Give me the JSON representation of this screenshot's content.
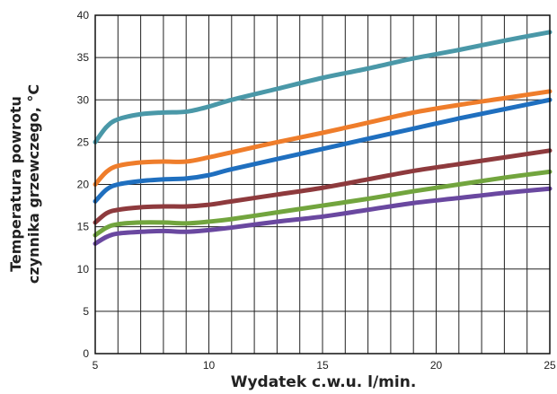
{
  "chart_data": {
    "type": "line",
    "title": "",
    "xlabel": "Wydatek c.w.u. l/min.",
    "ylabel_line1": "Temperatura powrotu",
    "ylabel_line2": "czynnika grzewczego, °C",
    "xlim": [
      5,
      25
    ],
    "ylim": [
      0,
      40
    ],
    "x_ticks": [
      5,
      10,
      15,
      20,
      25
    ],
    "y_ticks": [
      0,
      5,
      10,
      15,
      20,
      25,
      30,
      35,
      40
    ],
    "x_grid_step": 1,
    "y_grid_step": 5,
    "grid": true,
    "legend": "none",
    "series": [
      {
        "color": "#4a98a8",
        "points": [
          [
            5,
            25
          ],
          [
            5.5,
            26.8
          ],
          [
            6,
            27.7
          ],
          [
            7,
            28.3
          ],
          [
            8,
            28.5
          ],
          [
            9,
            28.6
          ],
          [
            10,
            29.2
          ],
          [
            11,
            30
          ],
          [
            13,
            31.3
          ],
          [
            15,
            32.6
          ],
          [
            17,
            33.7
          ],
          [
            19,
            34.9
          ],
          [
            21,
            35.9
          ],
          [
            23,
            37
          ],
          [
            25,
            38
          ]
        ]
      },
      {
        "color": "#ef7d2b",
        "points": [
          [
            5,
            20
          ],
          [
            5.5,
            21.5
          ],
          [
            6,
            22.2
          ],
          [
            7,
            22.6
          ],
          [
            8,
            22.7
          ],
          [
            9,
            22.7
          ],
          [
            10,
            23.2
          ],
          [
            11,
            23.8
          ],
          [
            13,
            25
          ],
          [
            15,
            26.1
          ],
          [
            17,
            27.3
          ],
          [
            19,
            28.5
          ],
          [
            21,
            29.4
          ],
          [
            23,
            30.2
          ],
          [
            25,
            31
          ]
        ]
      },
      {
        "color": "#1f6fbf",
        "points": [
          [
            5,
            18
          ],
          [
            5.5,
            19.4
          ],
          [
            6,
            20
          ],
          [
            7,
            20.4
          ],
          [
            8,
            20.6
          ],
          [
            9,
            20.7
          ],
          [
            10,
            21.1
          ],
          [
            11,
            21.8
          ],
          [
            13,
            23
          ],
          [
            15,
            24.2
          ],
          [
            17,
            25.4
          ],
          [
            19,
            26.6
          ],
          [
            21,
            27.8
          ],
          [
            23,
            28.9
          ],
          [
            25,
            30
          ]
        ]
      },
      {
        "color": "#8e3a3d",
        "points": [
          [
            5,
            15.5
          ],
          [
            5.5,
            16.6
          ],
          [
            6,
            17
          ],
          [
            7,
            17.3
          ],
          [
            8,
            17.4
          ],
          [
            9,
            17.4
          ],
          [
            10,
            17.6
          ],
          [
            11,
            18
          ],
          [
            13,
            18.8
          ],
          [
            15,
            19.6
          ],
          [
            17,
            20.6
          ],
          [
            19,
            21.6
          ],
          [
            21,
            22.4
          ],
          [
            23,
            23.2
          ],
          [
            25,
            24
          ]
        ]
      },
      {
        "color": "#72a53e",
        "points": [
          [
            5,
            14
          ],
          [
            5.5,
            14.9
          ],
          [
            6,
            15.3
          ],
          [
            7,
            15.5
          ],
          [
            8,
            15.5
          ],
          [
            9,
            15.4
          ],
          [
            10,
            15.6
          ],
          [
            11,
            15.9
          ],
          [
            13,
            16.7
          ],
          [
            15,
            17.5
          ],
          [
            17,
            18.3
          ],
          [
            19,
            19.2
          ],
          [
            21,
            20
          ],
          [
            23,
            20.8
          ],
          [
            25,
            21.5
          ]
        ]
      },
      {
        "color": "#6a48a0",
        "points": [
          [
            5,
            13
          ],
          [
            5.5,
            13.8
          ],
          [
            6,
            14.2
          ],
          [
            7,
            14.4
          ],
          [
            8,
            14.5
          ],
          [
            9,
            14.4
          ],
          [
            10,
            14.6
          ],
          [
            11,
            14.9
          ],
          [
            13,
            15.6
          ],
          [
            15,
            16.2
          ],
          [
            17,
            17
          ],
          [
            19,
            17.8
          ],
          [
            21,
            18.4
          ],
          [
            23,
            19
          ],
          [
            25,
            19.5
          ]
        ]
      }
    ]
  }
}
